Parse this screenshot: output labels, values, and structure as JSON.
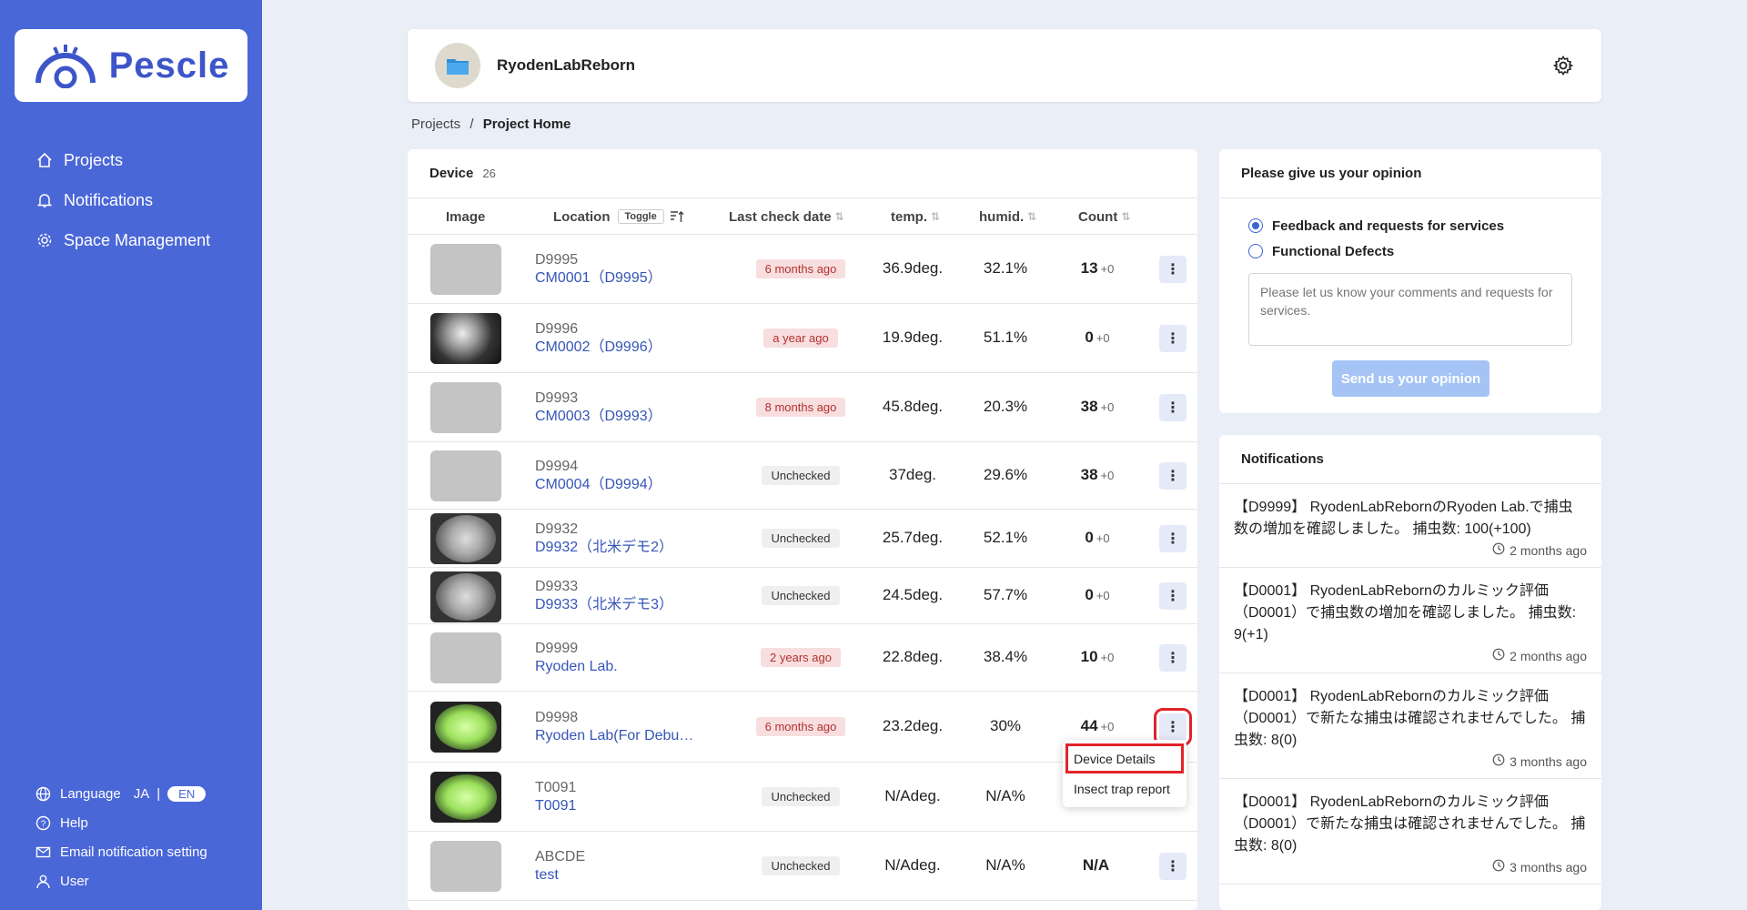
{
  "app": {
    "logo_text": "Pescle",
    "brand_color": "#4a67d8"
  },
  "nav": {
    "items": [
      {
        "label": "Projects",
        "icon": "home-icon"
      },
      {
        "label": "Notifications",
        "icon": "bell-icon"
      },
      {
        "label": "Space Management",
        "icon": "gear-icon"
      }
    ]
  },
  "sidebar_bottom": {
    "language_label": "Language",
    "lang_ja": "JA",
    "lang_sep": "|",
    "lang_en": "EN",
    "help": "Help",
    "email_setting": "Email notification setting",
    "user": "User"
  },
  "header": {
    "project_name": "RyodenLabReborn"
  },
  "breadcrumb": {
    "parent": "Projects",
    "separator": "/",
    "current": "Project Home"
  },
  "device_table": {
    "title": "Device",
    "count": "26",
    "columns": {
      "image": "Image",
      "location": "Location",
      "toggle": "Toggle",
      "last_check": "Last check date",
      "temp": "temp.",
      "humid": "humid.",
      "count": "Count"
    },
    "rows": [
      {
        "code": "D9995",
        "name": "CM0001（D9995）",
        "last_check": "6 months ago",
        "status": "ago",
        "temp": "36.9deg.",
        "humid": "32.1%",
        "count": "13",
        "delta": "+0",
        "thumb": "blank"
      },
      {
        "code": "D9996",
        "name": "CM0002（D9996）",
        "last_check": "a year ago",
        "status": "ago",
        "temp": "19.9deg.",
        "humid": "51.1%",
        "count": "0",
        "delta": "+0",
        "thumb": "dark"
      },
      {
        "code": "D9993",
        "name": "CM0003（D9993）",
        "last_check": "8 months ago",
        "status": "ago",
        "temp": "45.8deg.",
        "humid": "20.3%",
        "count": "38",
        "delta": "+0",
        "thumb": "blank"
      },
      {
        "code": "D9994",
        "name": "CM0004（D9994）",
        "last_check": "Unchecked",
        "status": "unchecked",
        "temp": "37deg.",
        "humid": "29.6%",
        "count": "38",
        "delta": "+0",
        "thumb": "blank"
      },
      {
        "code": "D9932",
        "name": "D9932（北米デモ2）",
        "last_check": "Unchecked",
        "status": "unchecked",
        "temp": "25.7deg.",
        "humid": "52.1%",
        "count": "0",
        "delta": "+0",
        "thumb": "fisheye"
      },
      {
        "code": "D9933",
        "name": "D9933（北米デモ3）",
        "last_check": "Unchecked",
        "status": "unchecked",
        "temp": "24.5deg.",
        "humid": "57.7%",
        "count": "0",
        "delta": "+0",
        "thumb": "fisheye"
      },
      {
        "code": "D9999",
        "name": "Ryoden Lab.",
        "last_check": "2 years ago",
        "status": "ago",
        "temp": "22.8deg.",
        "humid": "38.4%",
        "count": "10",
        "delta": "+0",
        "thumb": "blank"
      },
      {
        "code": "D9998",
        "name": "Ryoden Lab(For Debu…",
        "last_check": "6 months ago",
        "status": "ago",
        "temp": "23.2deg.",
        "humid": "30%",
        "count": "44",
        "delta": "+0",
        "thumb": "green"
      },
      {
        "code": "T0091",
        "name": "T0091",
        "last_check": "Unchecked",
        "status": "unchecked",
        "temp": "N/Adeg.",
        "humid": "N/A%",
        "count": "",
        "delta": "",
        "thumb": "green"
      },
      {
        "code": "ABCDE",
        "name": "test",
        "last_check": "Unchecked",
        "status": "unchecked",
        "temp": "N/Adeg.",
        "humid": "N/A%",
        "count": "N/A",
        "delta": "",
        "thumb": "blank"
      }
    ]
  },
  "context_menu": {
    "items": [
      "Device Details",
      "Insect trap report"
    ]
  },
  "opinion": {
    "title": "Please give us your opinion",
    "option_feedback": "Feedback and requests for services",
    "option_defects": "Functional Defects",
    "placeholder": "Please let us know your comments and requests for services.",
    "send_label": "Send us your opinion"
  },
  "notifications": {
    "title": "Notifications",
    "items": [
      {
        "text": "【D9999】 RyodenLabRebornのRyoden Lab.で捕虫数の増加を確認しました。 捕虫数: 100(+100)",
        "time": "2 months ago"
      },
      {
        "text": "【D0001】 RyodenLabRebornのカルミック評価（D0001）で捕虫数の増加を確認しました。 捕虫数: 9(+1)",
        "time": "2 months ago"
      },
      {
        "text": "【D0001】 RyodenLabRebornのカルミック評価（D0001）で新たな捕虫は確認されませんでした。 捕虫数: 8(0)",
        "time": "3 months ago"
      },
      {
        "text": "【D0001】 RyodenLabRebornのカルミック評価（D0001）で新たな捕虫は確認されませんでした。 捕虫数: 8(0)",
        "time": "3 months ago"
      }
    ]
  }
}
